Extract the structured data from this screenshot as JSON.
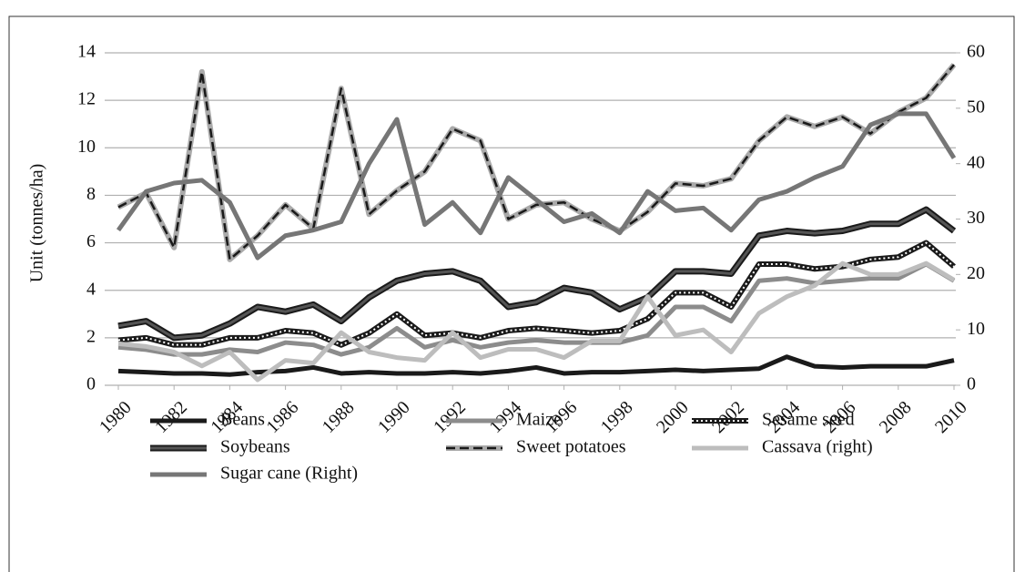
{
  "chart_data": {
    "type": "line",
    "y_label": "Unit (tonnes/ha)",
    "x": [
      1980,
      1981,
      1982,
      1983,
      1984,
      1985,
      1986,
      1987,
      1988,
      1989,
      1990,
      1991,
      1992,
      1993,
      1994,
      1995,
      1996,
      1997,
      1998,
      1999,
      2000,
      2001,
      2002,
      2003,
      2004,
      2005,
      2006,
      2007,
      2008,
      2009,
      2010
    ],
    "xlim": [
      1980,
      2010
    ],
    "xticks": [
      1980,
      1982,
      1984,
      1986,
      1988,
      1990,
      1992,
      1994,
      1996,
      1998,
      2000,
      2002,
      2004,
      2006,
      2008,
      2010
    ],
    "ylim": [
      0,
      14
    ],
    "yticks": [
      0,
      2,
      4,
      6,
      8,
      10,
      12,
      14
    ],
    "y2lim": [
      0,
      60
    ],
    "y2ticks": [
      0,
      10,
      20,
      30,
      40,
      50,
      60
    ],
    "grid": true,
    "series": [
      {
        "name": "Beans",
        "color": "#1a1a1a",
        "style": "solid",
        "values": [
          0.6,
          0.55,
          0.5,
          0.5,
          0.45,
          0.55,
          0.6,
          0.75,
          0.5,
          0.55,
          0.5,
          0.5,
          0.55,
          0.5,
          0.6,
          0.75,
          0.5,
          0.55,
          0.55,
          0.6,
          0.65,
          0.6,
          0.65,
          0.7,
          1.2,
          0.8,
          0.75,
          0.8,
          0.8,
          0.8,
          1.05
        ]
      },
      {
        "name": "Maize",
        "color": "#8c8c8c",
        "style": "solid",
        "values": [
          1.6,
          1.5,
          1.3,
          1.3,
          1.5,
          1.4,
          1.8,
          1.7,
          1.3,
          1.6,
          2.4,
          1.6,
          1.9,
          1.6,
          1.8,
          1.9,
          1.8,
          1.8,
          1.8,
          2.1,
          3.3,
          3.3,
          2.7,
          4.4,
          4.5,
          4.3,
          4.4,
          4.5,
          4.5,
          5.1,
          4.4
        ]
      },
      {
        "name": "Sesame seed",
        "color": "#1a1a1a",
        "style": "dotted",
        "values": [
          1.9,
          2.0,
          1.7,
          1.7,
          2.0,
          2.0,
          2.3,
          2.2,
          1.7,
          2.2,
          3.0,
          2.1,
          2.2,
          2.0,
          2.3,
          2.4,
          2.3,
          2.2,
          2.3,
          2.8,
          3.9,
          3.9,
          3.3,
          5.1,
          5.1,
          4.9,
          5.0,
          5.3,
          5.4,
          6.0,
          5.0
        ]
      },
      {
        "name": "Soybeans",
        "color": "#1a1a1a",
        "style": "double",
        "values": [
          2.5,
          2.7,
          2.0,
          2.1,
          2.6,
          3.3,
          3.1,
          3.4,
          2.7,
          3.7,
          4.4,
          4.7,
          4.8,
          4.4,
          3.3,
          3.5,
          4.1,
          3.9,
          3.2,
          3.7,
          4.8,
          4.8,
          4.7,
          6.3,
          6.5,
          6.4,
          6.5,
          6.8,
          6.8,
          7.4,
          6.5
        ]
      },
      {
        "name": "Sweet potatoes",
        "color": "#1a1a1a",
        "style": "dashed",
        "values": [
          7.5,
          8.1,
          5.8,
          13.2,
          5.3,
          6.3,
          7.6,
          6.6,
          12.5,
          7.2,
          8.2,
          9.0,
          10.8,
          10.3,
          7.0,
          7.6,
          7.7,
          7.0,
          6.5,
          7.3,
          8.5,
          8.4,
          8.7,
          10.3,
          11.3,
          10.9,
          11.3,
          10.6,
          11.5,
          12.1,
          13.5
        ]
      },
      {
        "name": "Cassava (right)",
        "color": "#bdbdbd",
        "style": "solid",
        "axis": "y2",
        "values": [
          7.5,
          7,
          6,
          3.5,
          6,
          1,
          4.5,
          4,
          9.5,
          6,
          5,
          4.5,
          9.5,
          5,
          6.5,
          6.5,
          5,
          8,
          8,
          16,
          9,
          10,
          6,
          13,
          16,
          18,
          22,
          20,
          20,
          22,
          19
        ]
      },
      {
        "name": "Sugar cane (Right)",
        "color": "#767676",
        "style": "solid",
        "axis": "y2",
        "values": [
          28,
          35,
          36.5,
          37,
          33,
          23,
          27,
          28,
          29.5,
          40,
          48,
          29,
          33,
          27.5,
          37.5,
          33.5,
          29.5,
          31,
          27.5,
          35,
          31.5,
          32,
          28,
          33.5,
          35,
          37.5,
          39.5,
          47,
          49,
          49,
          41
        ]
      }
    ]
  }
}
